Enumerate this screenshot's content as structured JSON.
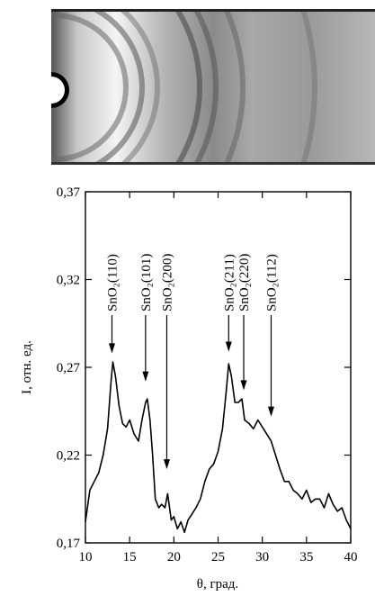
{
  "chart_data": {
    "type": "line",
    "xlabel": "θ, град.",
    "ylabel": "I, отн. ед.",
    "xlim": [
      10,
      40
    ],
    "xticks": [
      10,
      15,
      20,
      25,
      30,
      35,
      40
    ],
    "ylim": [
      0.17,
      0.37
    ],
    "yticks": [
      {
        "value": 0.17,
        "label": "0,17"
      },
      {
        "value": 0.22,
        "label": "0,22"
      },
      {
        "value": 0.27,
        "label": "0,27"
      },
      {
        "value": 0.32,
        "label": "0,32"
      },
      {
        "value": 0.37,
        "label": "0,37"
      }
    ],
    "color": "#000000",
    "x": [
      10,
      10.5,
      11,
      11.5,
      12,
      12.5,
      12.9,
      13.1,
      13.4,
      13.8,
      14.2,
      14.6,
      15,
      15.5,
      16,
      16.4,
      16.8,
      17,
      17.3,
      17.6,
      17.9,
      18.3,
      18.6,
      19,
      19.3,
      19.7,
      20,
      20.4,
      20.8,
      21.2,
      21.6,
      22,
      22.5,
      23,
      23.5,
      24,
      24.5,
      25,
      25.5,
      25.9,
      26.2,
      26.5,
      26.9,
      27.3,
      27.7,
      28,
      28.5,
      29,
      29.5,
      30,
      30.5,
      31,
      31.5,
      32,
      32.5,
      33,
      33.5,
      34,
      34.5,
      35,
      35.5,
      36,
      36.5,
      37,
      37.5,
      38,
      38.5,
      39,
      39.5,
      40
    ],
    "values": [
      0.182,
      0.2,
      0.205,
      0.21,
      0.22,
      0.235,
      0.262,
      0.273,
      0.265,
      0.248,
      0.238,
      0.236,
      0.24,
      0.232,
      0.228,
      0.24,
      0.25,
      0.252,
      0.24,
      0.22,
      0.195,
      0.19,
      0.192,
      0.19,
      0.198,
      0.183,
      0.185,
      0.178,
      0.182,
      0.176,
      0.183,
      0.186,
      0.19,
      0.195,
      0.205,
      0.212,
      0.215,
      0.222,
      0.235,
      0.255,
      0.272,
      0.265,
      0.25,
      0.25,
      0.252,
      0.24,
      0.238,
      0.235,
      0.24,
      0.236,
      0.232,
      0.228,
      0.22,
      0.212,
      0.205,
      0.205,
      0.2,
      0.198,
      0.195,
      0.2,
      0.193,
      0.195,
      0.195,
      0.19,
      0.198,
      0.192,
      0.188,
      0.19,
      0.183,
      0.178
    ],
    "annotations": [
      {
        "text": "SnO₂(110)",
        "x": 13,
        "y": 0.278
      },
      {
        "text": "SnO₂(101)",
        "x": 16.8,
        "y": 0.262
      },
      {
        "text": "SnO₂(200)",
        "x": 19.2,
        "y": 0.212
      },
      {
        "text": "SnO₂(211)",
        "x": 26.2,
        "y": 0.279
      },
      {
        "text": "SnO₂(220)",
        "x": 27.9,
        "y": 0.257
      },
      {
        "text": "SnO₂(112)",
        "x": 31,
        "y": 0.242
      }
    ]
  }
}
